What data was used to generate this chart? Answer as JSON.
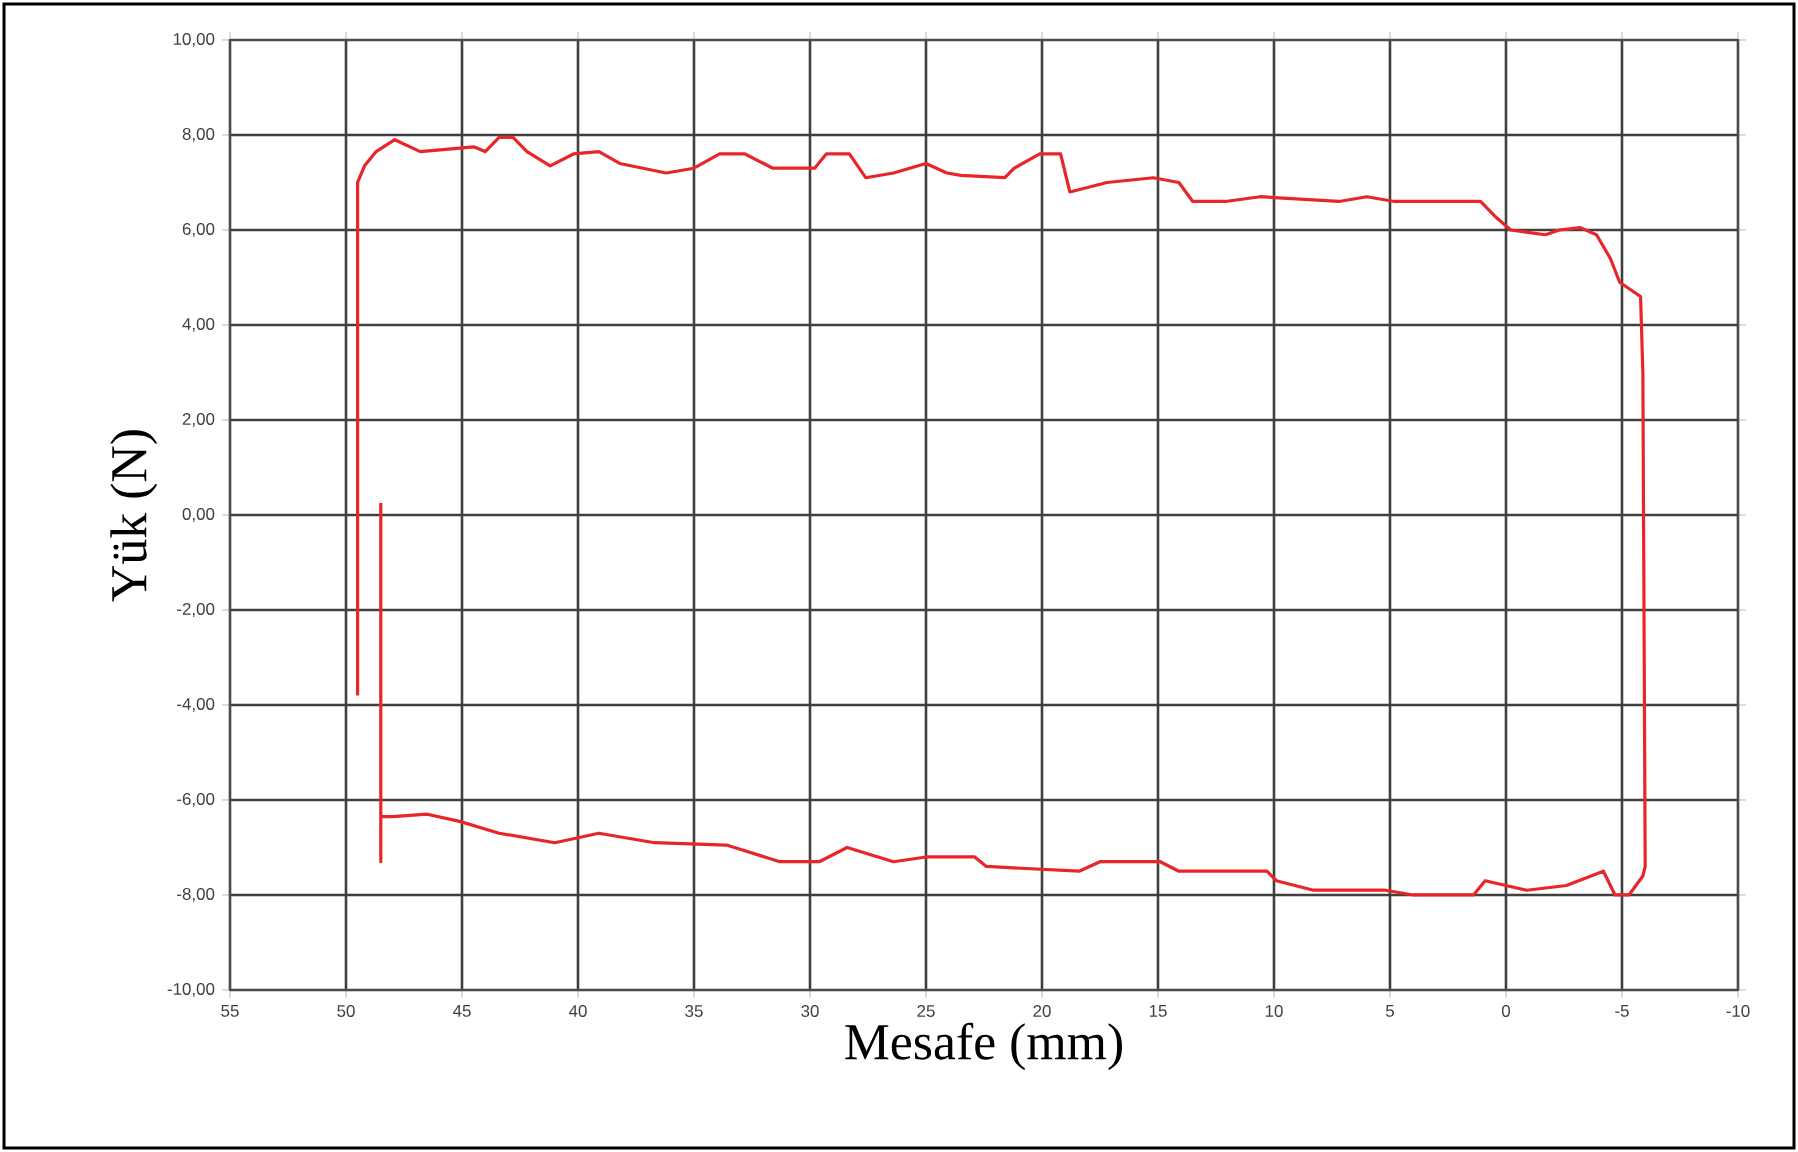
{
  "chart_data": {
    "type": "line",
    "xlabel": "Mesafe (mm)",
    "ylabel": "Yük (N)",
    "xlim": [
      55,
      -10
    ],
    "ylim": [
      -10,
      10
    ],
    "xticks": [
      55,
      50,
      45,
      40,
      35,
      30,
      25,
      20,
      15,
      10,
      5,
      0,
      -5,
      -10
    ],
    "yticks": [
      {
        "value": -10,
        "label": "-10,00"
      },
      {
        "value": -8,
        "label": "-8,00"
      },
      {
        "value": -6,
        "label": "-6,00"
      },
      {
        "value": -4,
        "label": "-4,00"
      },
      {
        "value": -2,
        "label": "-2,00"
      },
      {
        "value": 0,
        "label": "0,00"
      },
      {
        "value": 2,
        "label": "2,00"
      },
      {
        "value": 4,
        "label": "4,00"
      },
      {
        "value": 6,
        "label": "6,00"
      },
      {
        "value": 8,
        "label": "8,00"
      },
      {
        "value": 10,
        "label": "10,00"
      }
    ],
    "grid": true,
    "series": [
      {
        "color": "#e8262a",
        "x": [
          48.5,
          48.5,
          48.5,
          48.0,
          46.5,
          45.1,
          43.4,
          41.0,
          39.1,
          36.7,
          33.6,
          31.3,
          29.6,
          28.4,
          26.4,
          25.0,
          22.9,
          22.4,
          18.4,
          17.5,
          14.9,
          14.1,
          10.3,
          9.9,
          8.3,
          5.2,
          4.0,
          1.4,
          0.9,
          0.0,
          -0.9,
          -2.6,
          -4.2,
          -4.7,
          -5.3,
          -5.9,
          -6.0,
          -5.9,
          -5.8,
          -4.9,
          -4.5,
          -3.9,
          -3.2,
          -2.3,
          -1.7,
          -0.2,
          0.5,
          1.1,
          4.8,
          6.0,
          7.2,
          10.6,
          12.1,
          13.5,
          14.1,
          15.2,
          17.2,
          18.8,
          19.2,
          20.1,
          21.2,
          21.6,
          23.5,
          24.1,
          25.0,
          26.4,
          27.6,
          28.3,
          29.3,
          29.8,
          31.6,
          32.8,
          33.9,
          35.0,
          36.2,
          38.2,
          39.1,
          40.2,
          41.2,
          42.2,
          42.8,
          43.4,
          44.0,
          44.5,
          46.8,
          47.9,
          48.7,
          49.2,
          49.5,
          49.5
        ],
        "values": [
          0.25,
          -7.3,
          -6.35,
          -6.35,
          -6.3,
          -6.45,
          -6.7,
          -6.9,
          -6.7,
          -6.9,
          -6.95,
          -7.3,
          -7.3,
          -7.0,
          -7.3,
          -7.2,
          -7.2,
          -7.4,
          -7.5,
          -7.3,
          -7.3,
          -7.5,
          -7.5,
          -7.7,
          -7.9,
          -7.9,
          -8.0,
          -8.0,
          -7.7,
          -7.8,
          -7.9,
          -7.8,
          -7.5,
          -8.0,
          -8.0,
          -7.6,
          -7.4,
          3.0,
          4.6,
          4.9,
          5.4,
          5.9,
          6.05,
          6.0,
          5.9,
          6.0,
          6.3,
          6.6,
          6.6,
          6.7,
          6.6,
          6.7,
          6.6,
          6.6,
          7.0,
          7.1,
          7.0,
          6.8,
          7.6,
          7.6,
          7.3,
          7.1,
          7.15,
          7.2,
          7.4,
          7.2,
          7.1,
          7.6,
          7.6,
          7.3,
          7.3,
          7.6,
          7.6,
          7.3,
          7.2,
          7.4,
          7.65,
          7.6,
          7.35,
          7.65,
          7.95,
          7.95,
          7.65,
          7.75,
          7.65,
          7.9,
          7.65,
          7.35,
          7.0,
          -3.8
        ]
      }
    ]
  }
}
